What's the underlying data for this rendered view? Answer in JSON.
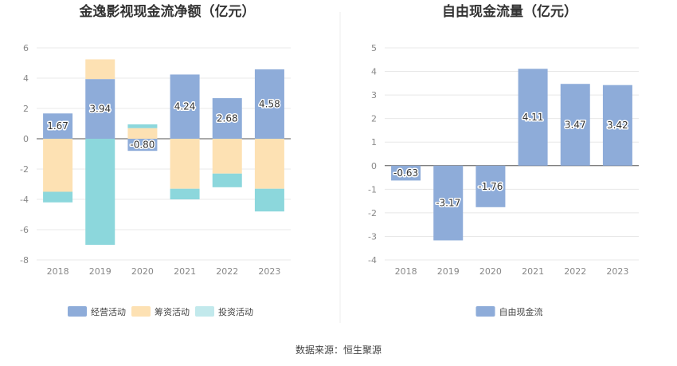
{
  "chart_data": [
    {
      "type": "bar",
      "stacked": true,
      "title": "金逸影视现金流净额（亿元）",
      "categories": [
        "2018",
        "2019",
        "2020",
        "2021",
        "2022",
        "2023"
      ],
      "ylim": [
        -8,
        6
      ],
      "yticks": [
        6,
        4,
        2,
        0,
        -2,
        -4,
        -6,
        -8
      ],
      "series": [
        {
          "name": "经营活动",
          "color": "#8eacd9",
          "values": [
            1.67,
            3.94,
            -0.8,
            4.24,
            2.68,
            4.58
          ]
        },
        {
          "name": "筹资活动",
          "color": "#fde1b3",
          "values": [
            -3.5,
            1.3,
            0.7,
            -3.3,
            -2.3,
            -3.3
          ]
        },
        {
          "name": "投资活动",
          "color": "#8cd7dc",
          "values": [
            -0.7,
            -7.0,
            0.25,
            -0.7,
            -0.9,
            -1.5
          ]
        }
      ],
      "data_labels": [
        "1.67",
        "3.94",
        "-0.80",
        "4.24",
        "2.68",
        "4.58"
      ],
      "legend": [
        "经营活动",
        "筹资活动",
        "投资活动"
      ]
    },
    {
      "type": "bar",
      "title": "自由现金流量（亿元）",
      "categories": [
        "2018",
        "2019",
        "2020",
        "2021",
        "2022",
        "2023"
      ],
      "ylim": [
        -4,
        5
      ],
      "yticks": [
        5,
        4,
        3,
        2,
        1,
        0,
        -1,
        -2,
        -3,
        -4
      ],
      "series": [
        {
          "name": "自由现金流",
          "color": "#8eacd9",
          "values": [
            -0.63,
            -3.17,
            -1.76,
            4.11,
            3.47,
            3.42
          ]
        }
      ],
      "data_labels": [
        "-0.63",
        "-3.17",
        "-1.76",
        "4.11",
        "3.47",
        "3.42"
      ],
      "legend": [
        "自由现金流"
      ]
    }
  ],
  "source": "数据来源：恒生聚源"
}
